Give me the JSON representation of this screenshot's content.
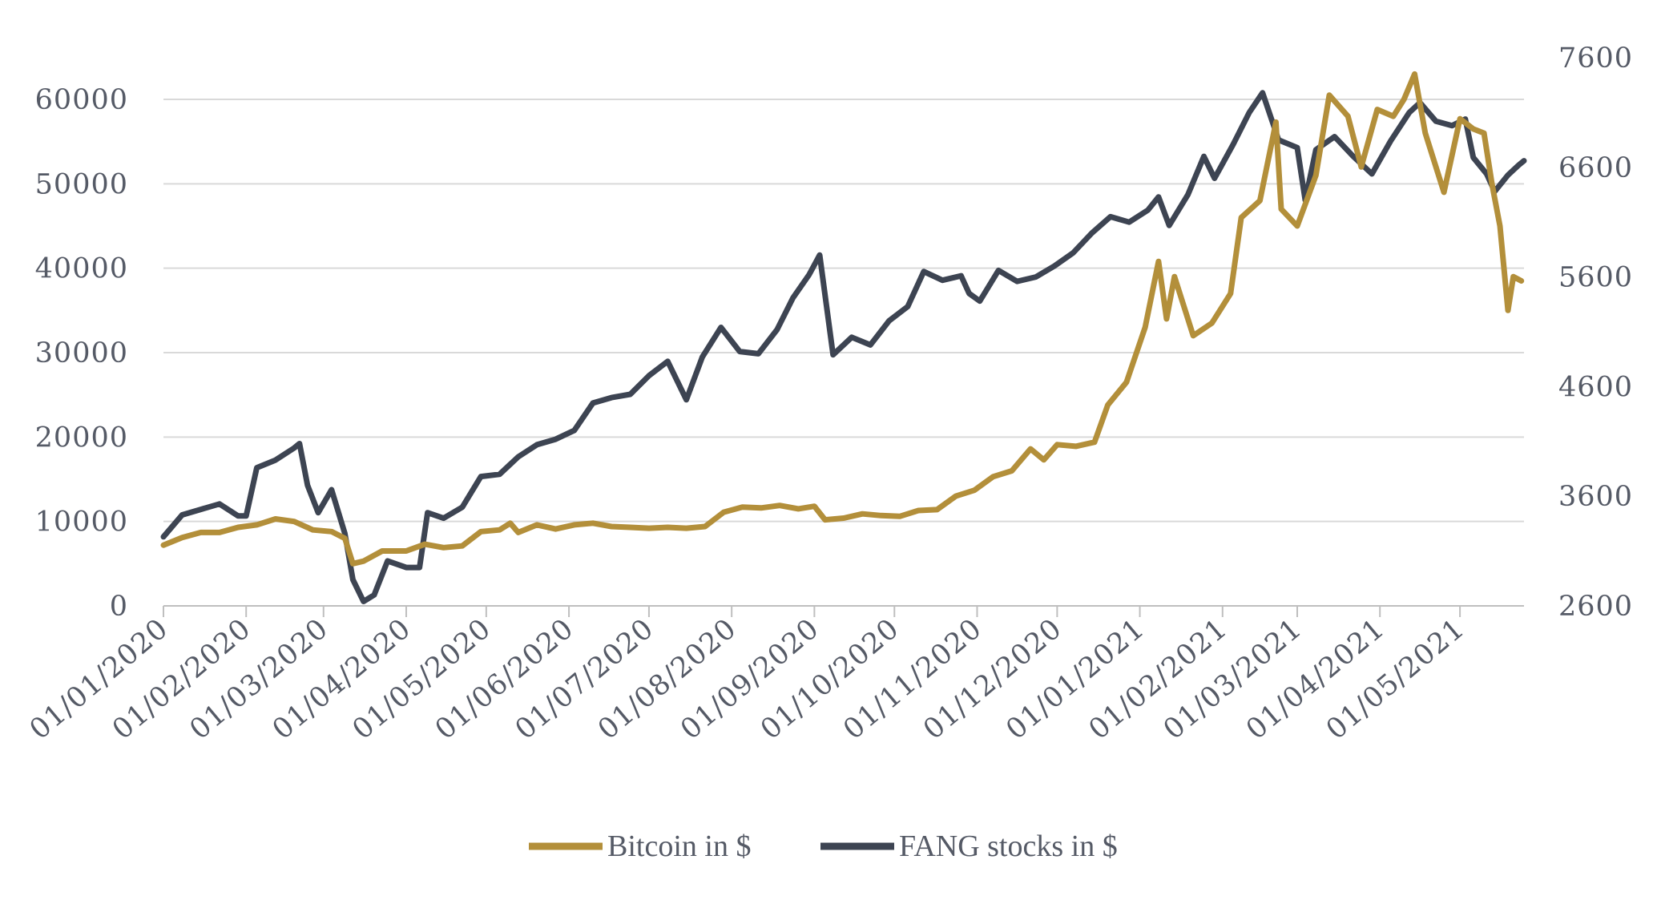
{
  "chart_data": {
    "type": "line",
    "title": "",
    "xlabel": "",
    "ylabel": "",
    "grid": true,
    "legend_position": "bottom",
    "x_tick_labels": [
      "01/01/2020",
      "01/02/2020",
      "01/03/2020",
      "01/04/2020",
      "01/05/2020",
      "01/06/2020",
      "01/07/2020",
      "01/08/2020",
      "01/09/2020",
      "01/10/2020",
      "01/11/2020",
      "01/12/2020",
      "01/01/2021",
      "01/02/2021",
      "01/03/2021",
      "01/04/2021",
      "01/05/2021"
    ],
    "x_range": [
      "2020-01-01",
      "2021-05-25"
    ],
    "y_left": {
      "range": [
        0,
        60000
      ],
      "ticks": [
        "0",
        "10000",
        "20000",
        "30000",
        "40000",
        "50000",
        "60000"
      ]
    },
    "y_right": {
      "range": [
        2600,
        7600
      ],
      "ticks": [
        "2600",
        "3600",
        "4600",
        "5600",
        "6600",
        "7600"
      ]
    },
    "colors": {
      "bitcoin": "#b38f3a",
      "fang": "#3d4452",
      "grid": "#d9d9d9",
      "text": "#555a66"
    },
    "series": [
      {
        "name": "Bitcoin in $",
        "axis": "left",
        "points": [
          [
            "2020-01-01",
            7200
          ],
          [
            "2020-01-08",
            8100
          ],
          [
            "2020-01-15",
            8700
          ],
          [
            "2020-01-22",
            8700
          ],
          [
            "2020-01-29",
            9300
          ],
          [
            "2020-02-05",
            9600
          ],
          [
            "2020-02-12",
            10300
          ],
          [
            "2020-02-19",
            10000
          ],
          [
            "2020-02-26",
            9000
          ],
          [
            "2020-03-04",
            8800
          ],
          [
            "2020-03-09",
            8000
          ],
          [
            "2020-03-12",
            5000
          ],
          [
            "2020-03-16",
            5300
          ],
          [
            "2020-03-23",
            6500
          ],
          [
            "2020-04-01",
            6500
          ],
          [
            "2020-04-08",
            7300
          ],
          [
            "2020-04-15",
            6900
          ],
          [
            "2020-04-22",
            7100
          ],
          [
            "2020-04-29",
            8800
          ],
          [
            "2020-05-06",
            9000
          ],
          [
            "2020-05-10",
            9800
          ],
          [
            "2020-05-13",
            8700
          ],
          [
            "2020-05-20",
            9600
          ],
          [
            "2020-05-27",
            9100
          ],
          [
            "2020-06-03",
            9600
          ],
          [
            "2020-06-10",
            9800
          ],
          [
            "2020-06-17",
            9400
          ],
          [
            "2020-06-24",
            9300
          ],
          [
            "2020-07-01",
            9200
          ],
          [
            "2020-07-08",
            9300
          ],
          [
            "2020-07-15",
            9200
          ],
          [
            "2020-07-22",
            9400
          ],
          [
            "2020-07-29",
            11100
          ],
          [
            "2020-08-05",
            11700
          ],
          [
            "2020-08-12",
            11600
          ],
          [
            "2020-08-19",
            11900
          ],
          [
            "2020-08-26",
            11500
          ],
          [
            "2020-09-01",
            11800
          ],
          [
            "2020-09-05",
            10200
          ],
          [
            "2020-09-12",
            10400
          ],
          [
            "2020-09-19",
            10900
          ],
          [
            "2020-09-26",
            10700
          ],
          [
            "2020-10-03",
            10600
          ],
          [
            "2020-10-10",
            11300
          ],
          [
            "2020-10-17",
            11400
          ],
          [
            "2020-10-24",
            13000
          ],
          [
            "2020-10-31",
            13700
          ],
          [
            "2020-11-07",
            15300
          ],
          [
            "2020-11-14",
            16000
          ],
          [
            "2020-11-21",
            18600
          ],
          [
            "2020-11-26",
            17300
          ],
          [
            "2020-12-01",
            19100
          ],
          [
            "2020-12-08",
            18900
          ],
          [
            "2020-12-15",
            19400
          ],
          [
            "2020-12-20",
            23800
          ],
          [
            "2020-12-27",
            26500
          ],
          [
            "2021-01-03",
            33000
          ],
          [
            "2021-01-08",
            40800
          ],
          [
            "2021-01-11",
            34000
          ],
          [
            "2021-01-14",
            39000
          ],
          [
            "2021-01-21",
            32000
          ],
          [
            "2021-01-28",
            33500
          ],
          [
            "2021-02-04",
            37000
          ],
          [
            "2021-02-08",
            46000
          ],
          [
            "2021-02-15",
            48000
          ],
          [
            "2021-02-21",
            57300
          ],
          [
            "2021-02-23",
            47000
          ],
          [
            "2021-03-01",
            45000
          ],
          [
            "2021-03-08",
            51000
          ],
          [
            "2021-03-13",
            60500
          ],
          [
            "2021-03-20",
            58000
          ],
          [
            "2021-03-25",
            52000
          ],
          [
            "2021-03-31",
            58800
          ],
          [
            "2021-04-06",
            58000
          ],
          [
            "2021-04-10",
            60000
          ],
          [
            "2021-04-14",
            63000
          ],
          [
            "2021-04-18",
            56000
          ],
          [
            "2021-04-25",
            49000
          ],
          [
            "2021-05-01",
            57700
          ],
          [
            "2021-05-06",
            56500
          ],
          [
            "2021-05-10",
            56000
          ],
          [
            "2021-05-13",
            50000
          ],
          [
            "2021-05-16",
            45000
          ],
          [
            "2021-05-19",
            35000
          ],
          [
            "2021-05-21",
            39000
          ],
          [
            "2021-05-24",
            38500
          ]
        ]
      },
      {
        "name": "FANG stocks in $",
        "axis": "right",
        "points": [
          [
            "2020-01-01",
            3230
          ],
          [
            "2020-01-08",
            3430
          ],
          [
            "2020-01-15",
            3480
          ],
          [
            "2020-01-22",
            3530
          ],
          [
            "2020-01-29",
            3420
          ],
          [
            "2020-02-01",
            3420
          ],
          [
            "2020-02-05",
            3860
          ],
          [
            "2020-02-12",
            3930
          ],
          [
            "2020-02-19",
            4040
          ],
          [
            "2020-02-21",
            4080
          ],
          [
            "2020-02-24",
            3700
          ],
          [
            "2020-02-28",
            3450
          ],
          [
            "2020-03-04",
            3660
          ],
          [
            "2020-03-09",
            3260
          ],
          [
            "2020-03-12",
            2840
          ],
          [
            "2020-03-16",
            2640
          ],
          [
            "2020-03-20",
            2700
          ],
          [
            "2020-03-25",
            3010
          ],
          [
            "2020-04-01",
            2950
          ],
          [
            "2020-04-06",
            2950
          ],
          [
            "2020-04-09",
            3450
          ],
          [
            "2020-04-15",
            3400
          ],
          [
            "2020-04-22",
            3500
          ],
          [
            "2020-04-29",
            3780
          ],
          [
            "2020-05-06",
            3800
          ],
          [
            "2020-05-13",
            3960
          ],
          [
            "2020-05-20",
            4070
          ],
          [
            "2020-05-27",
            4120
          ],
          [
            "2020-06-03",
            4200
          ],
          [
            "2020-06-10",
            4450
          ],
          [
            "2020-06-17",
            4500
          ],
          [
            "2020-06-24",
            4530
          ],
          [
            "2020-07-01",
            4700
          ],
          [
            "2020-07-08",
            4830
          ],
          [
            "2020-07-15",
            4480
          ],
          [
            "2020-07-21",
            4870
          ],
          [
            "2020-07-28",
            5140
          ],
          [
            "2020-08-04",
            4920
          ],
          [
            "2020-08-11",
            4900
          ],
          [
            "2020-08-18",
            5120
          ],
          [
            "2020-08-24",
            5410
          ],
          [
            "2020-08-30",
            5620
          ],
          [
            "2020-09-03",
            5800
          ],
          [
            "2020-09-08",
            4890
          ],
          [
            "2020-09-15",
            5050
          ],
          [
            "2020-09-22",
            4980
          ],
          [
            "2020-09-29",
            5200
          ],
          [
            "2020-10-06",
            5330
          ],
          [
            "2020-10-12",
            5650
          ],
          [
            "2020-10-19",
            5570
          ],
          [
            "2020-10-26",
            5610
          ],
          [
            "2020-10-29",
            5450
          ],
          [
            "2020-11-02",
            5380
          ],
          [
            "2020-11-09",
            5660
          ],
          [
            "2020-11-16",
            5560
          ],
          [
            "2020-11-23",
            5600
          ],
          [
            "2020-11-30",
            5700
          ],
          [
            "2020-12-07",
            5820
          ],
          [
            "2020-12-14",
            6000
          ],
          [
            "2020-12-21",
            6150
          ],
          [
            "2020-12-28",
            6100
          ],
          [
            "2021-01-04",
            6210
          ],
          [
            "2021-01-08",
            6330
          ],
          [
            "2021-01-12",
            6070
          ],
          [
            "2021-01-19",
            6350
          ],
          [
            "2021-01-25",
            6700
          ],
          [
            "2021-01-29",
            6500
          ],
          [
            "2021-02-05",
            6810
          ],
          [
            "2021-02-11",
            7100
          ],
          [
            "2021-02-16",
            7280
          ],
          [
            "2021-02-22",
            6850
          ],
          [
            "2021-03-01",
            6780
          ],
          [
            "2021-03-04",
            6300
          ],
          [
            "2021-03-08",
            6760
          ],
          [
            "2021-03-15",
            6880
          ],
          [
            "2021-03-22",
            6700
          ],
          [
            "2021-03-29",
            6540
          ],
          [
            "2021-04-05",
            6840
          ],
          [
            "2021-04-12",
            7100
          ],
          [
            "2021-04-16",
            7190
          ],
          [
            "2021-04-22",
            7020
          ],
          [
            "2021-04-28",
            6980
          ],
          [
            "2021-05-03",
            7040
          ],
          [
            "2021-05-06",
            6690
          ],
          [
            "2021-05-11",
            6540
          ],
          [
            "2021-05-14",
            6380
          ],
          [
            "2021-05-19",
            6530
          ],
          [
            "2021-05-23",
            6620
          ],
          [
            "2021-05-25",
            6660
          ]
        ]
      }
    ]
  }
}
